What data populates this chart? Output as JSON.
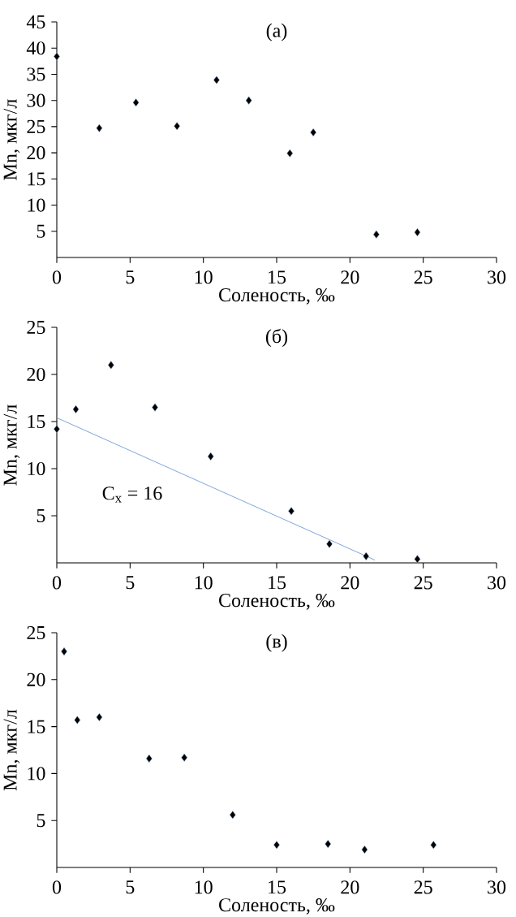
{
  "chart_data": [
    {
      "type": "scatter",
      "title": "(а)",
      "xlabel": "Соленость, ‰",
      "ylabel": "Mn, мкг/л",
      "xlim": [
        0,
        30
      ],
      "ylim": [
        0,
        45
      ],
      "xticks": [
        0,
        5,
        10,
        15,
        20,
        25,
        30
      ],
      "yticks": [
        5,
        10,
        15,
        20,
        25,
        30,
        35,
        40,
        45
      ],
      "marker": "diamond",
      "series": [
        {
          "color": "#000000",
          "x": [
            0,
            2.9,
            5.4,
            8.2,
            10.9,
            13.1,
            15.9,
            17.5,
            21.8,
            24.6
          ],
          "values": [
            38.4,
            24.7,
            29.6,
            25.1,
            33.9,
            30.0,
            19.9,
            23.9,
            4.4,
            4.8
          ]
        }
      ]
    },
    {
      "type": "scatter",
      "title": "(б)",
      "xlabel": "Соленость, ‰",
      "ylabel": "Mn, мкг/л",
      "xlim": [
        0,
        30
      ],
      "ylim": [
        0,
        25
      ],
      "xticks": [
        0,
        5,
        10,
        15,
        20,
        25,
        30
      ],
      "yticks": [
        5,
        10,
        15,
        20,
        25
      ],
      "marker": "diamond",
      "annotations": [
        "C$_{x}$ = 16"
      ],
      "series": [
        {
          "color": "#000000",
          "x": [
            0,
            1.3,
            3.7,
            6.7,
            10.5,
            16.0,
            18.6,
            21.1,
            24.6
          ],
          "values": [
            14.2,
            16.3,
            21.0,
            16.5,
            11.3,
            5.5,
            2.0,
            0.7,
            0.4
          ]
        },
        {
          "type": "line",
          "color": "#5b8fd0",
          "line_style": "solid",
          "marker": "none",
          "x": [
            0,
            21.7
          ],
          "values": [
            15.4,
            0.3
          ]
        }
      ]
    },
    {
      "type": "scatter",
      "title": "(в)",
      "xlabel": "Соленость, ‰",
      "ylabel": "Mn, мкг/л",
      "xlim": [
        0,
        30
      ],
      "ylim": [
        0,
        25
      ],
      "xticks": [
        0,
        5,
        10,
        15,
        20,
        25,
        30
      ],
      "yticks": [
        5,
        10,
        15,
        20,
        25
      ],
      "marker": "diamond",
      "series": [
        {
          "color": "#000000",
          "x": [
            0.5,
            1.4,
            2.9,
            6.3,
            8.7,
            12.0,
            15.0,
            18.5,
            21.0,
            25.7
          ],
          "values": [
            23.0,
            15.7,
            16.0,
            11.6,
            11.7,
            5.6,
            2.4,
            2.5,
            1.9,
            2.4
          ]
        }
      ]
    }
  ]
}
